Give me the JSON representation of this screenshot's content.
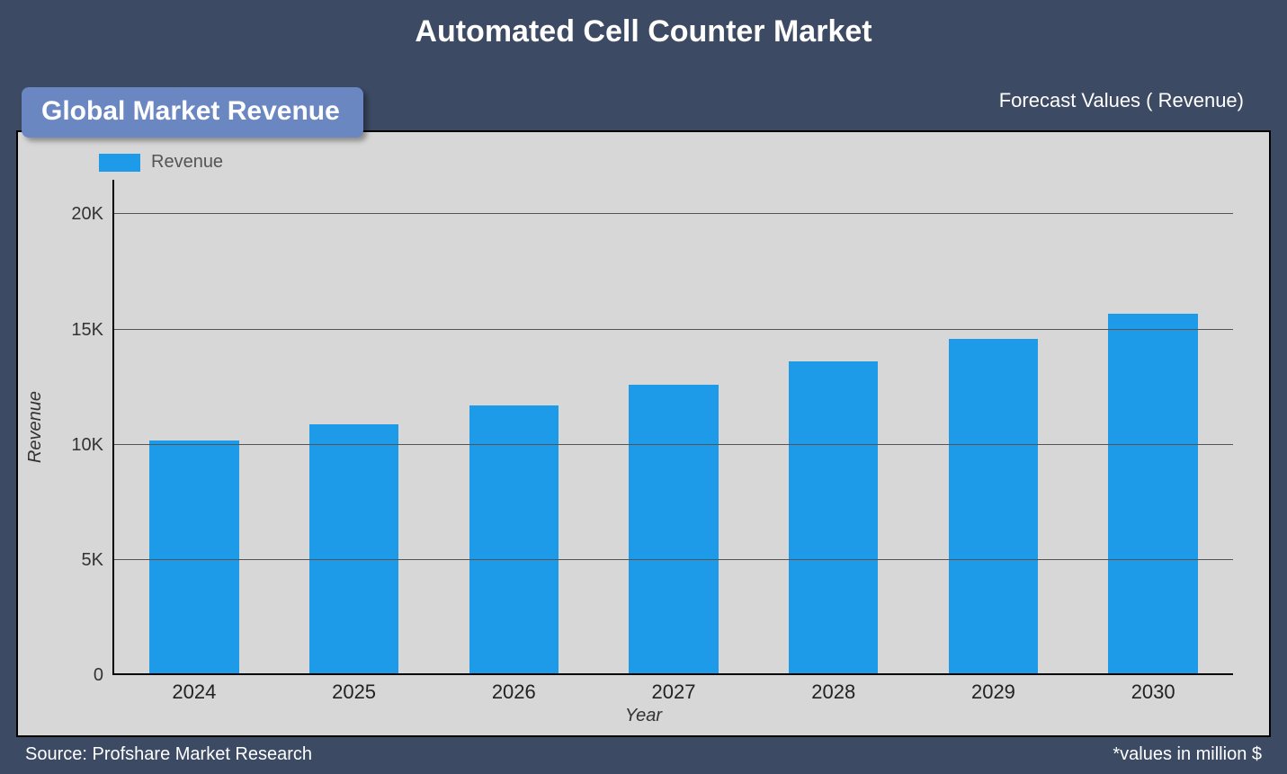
{
  "page": {
    "background_color": "#3c4a63",
    "title": "Automated Cell Counter Market",
    "title_color": "#ffffff",
    "title_fontsize": 34,
    "subtitle_badge": {
      "text": "Global Market Revenue",
      "background_color": "#6a87c2",
      "text_color": "#ffffff",
      "fontsize": 30
    },
    "forecast_label": "Forecast Values ( Revenue)",
    "source_text": "Source: Profshare Market Research",
    "footnote_text": "*values in million $"
  },
  "chart": {
    "type": "bar",
    "card_background_color": "#d7d7d7",
    "card_border_color": "#000000",
    "legend": {
      "label": "Revenue",
      "swatch_color": "#1e9be8",
      "text_color": "#555555",
      "fontsize": 20
    },
    "y_axis": {
      "title": "Revenue",
      "title_fontstyle": "italic",
      "min": 0,
      "max": 21500,
      "ticks": [
        {
          "value": 0,
          "label": "0"
        },
        {
          "value": 5000,
          "label": "5K"
        },
        {
          "value": 10000,
          "label": "10K"
        },
        {
          "value": 15000,
          "label": "15K"
        },
        {
          "value": 20000,
          "label": "20K"
        }
      ],
      "tick_fontsize": 20,
      "tick_color": "#333333",
      "gridline_color": "#555555"
    },
    "x_axis": {
      "title": "Year",
      "title_fontstyle": "italic",
      "categories": [
        "2024",
        "2025",
        "2026",
        "2027",
        "2028",
        "2029",
        "2030"
      ],
      "tick_fontsize": 22,
      "tick_color": "#222222"
    },
    "series": {
      "name": "Revenue",
      "color": "#1e9be8",
      "bar_width_fraction": 0.56,
      "values": [
        10200,
        10900,
        11700,
        12600,
        13600,
        14600,
        15700
      ]
    }
  }
}
